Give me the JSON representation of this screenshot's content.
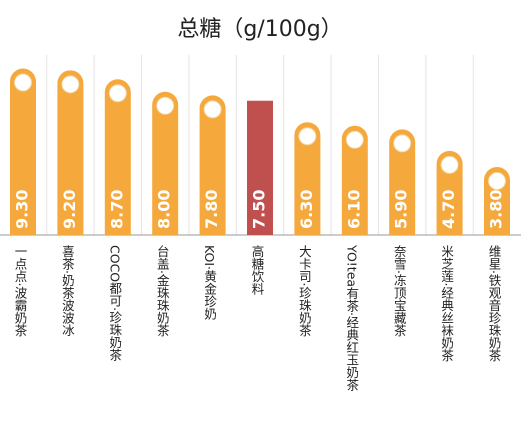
{
  "chart_data": {
    "type": "bar",
    "title": "总糖（g/100g）",
    "categories": [
      "一点点·波霸奶茶",
      "喜茶·奶茶波波冰",
      "COCO都可·珍珠奶茶",
      "台盖·金珠珠奶茶",
      "KOI·黄金珍奶",
      "高糖饮料",
      "大卡司·珍珠奶茶",
      "YO!tea有茶·经典红玉奶茶",
      "奈雪·冻顶宝藏茶",
      "米芝莲·经典丝袜奶茶",
      "维星·铁观音珍珠奶茶"
    ],
    "values": [
      9.3,
      9.2,
      8.7,
      8.0,
      7.8,
      7.5,
      6.3,
      6.1,
      5.9,
      4.7,
      3.8
    ],
    "value_labels": [
      "9.30",
      "9.20",
      "8.70",
      "8.00",
      "7.80",
      "7.50",
      "6.30",
      "6.10",
      "5.90",
      "4.70",
      "3.80"
    ],
    "colors": [
      "#f5a83c",
      "#f5a83c",
      "#f5a83c",
      "#f5a83c",
      "#f5a83c",
      "#c0504d",
      "#f5a83c",
      "#f5a83c",
      "#f5a83c",
      "#f5a83c",
      "#f5a83c"
    ]
  }
}
